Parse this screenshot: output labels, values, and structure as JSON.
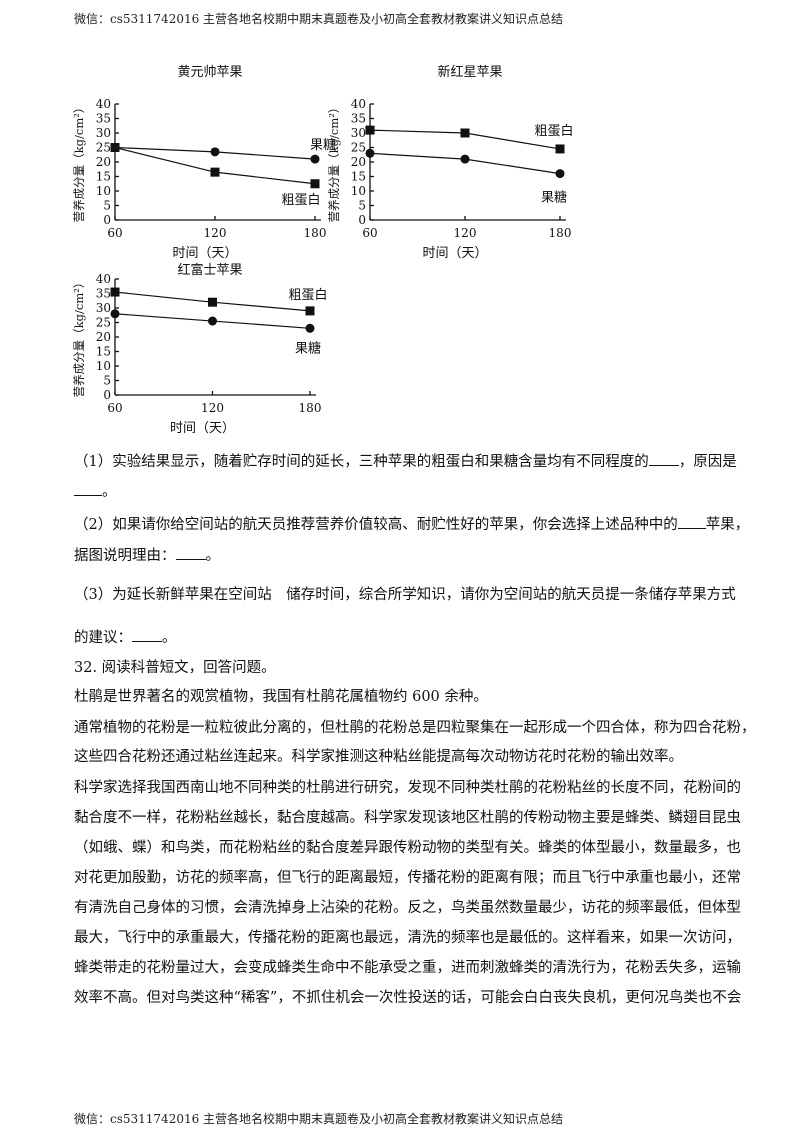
{
  "header": "微信：cs5311742016  主营各地名校期中期末真题卷及小初高全套教材教案讲义知识点总结",
  "footer": "微信：cs5311742016  主营各地名校期中期末真题卷及小初高全套教材教案讲义知识点总结",
  "chart_data": [
    {
      "type": "line",
      "title": "黄元帅苹果",
      "xlabel": "时间（天）",
      "ylabel": "营养成分量（kg/cm²）",
      "x": [
        60,
        120,
        180
      ],
      "xlim": [
        60,
        180
      ],
      "ylim": [
        0,
        40
      ],
      "yticks": [
        0,
        5,
        10,
        15,
        20,
        25,
        30,
        35,
        40
      ],
      "series": [
        {
          "name": "果糖",
          "marker": "circle",
          "values": [
            25,
            23.5,
            21
          ]
        },
        {
          "name": "粗蛋白",
          "marker": "square",
          "values": [
            25,
            16.5,
            12.5
          ]
        }
      ],
      "grid": false
    },
    {
      "type": "line",
      "title": "新红星苹果",
      "xlabel": "时间（天）",
      "ylabel": "营养成分量（kg/cm²）",
      "x": [
        60,
        120,
        180
      ],
      "xlim": [
        60,
        180
      ],
      "ylim": [
        0,
        40
      ],
      "yticks": [
        0,
        5,
        10,
        15,
        20,
        25,
        30,
        35,
        40
      ],
      "series": [
        {
          "name": "粗蛋白",
          "marker": "square",
          "values": [
            31,
            30,
            24.5
          ]
        },
        {
          "name": "果糖",
          "marker": "circle",
          "values": [
            23,
            21,
            16
          ]
        }
      ],
      "grid": false
    },
    {
      "type": "line",
      "title": "红富士苹果",
      "xlabel": "时间（天）",
      "ylabel": "营养成分量（kg/cm²）",
      "x": [
        60,
        120,
        180
      ],
      "xlim": [
        60,
        180
      ],
      "ylim": [
        0,
        40
      ],
      "yticks": [
        0,
        5,
        10,
        15,
        20,
        25,
        30,
        35,
        40
      ],
      "series": [
        {
          "name": "粗蛋白",
          "marker": "square",
          "values": [
            35.5,
            32,
            29
          ]
        },
        {
          "name": "果糖",
          "marker": "circle",
          "values": [
            28,
            25.5,
            23
          ]
        }
      ],
      "grid": false
    }
  ],
  "questions": {
    "q1a": "（1）实验结果显示，随着贮存时间的延长，三种苹果的粗蛋白和果糖含量均有不同程度的",
    "q1b": "，原因是",
    "q1c": "。",
    "q2a": "（2）如果请你给空间站的航天员推荐营养价值较高、耐贮性好的苹果，你会选择上述品种中的",
    "q2b": "苹果，",
    "q2c": "据图说明理由：",
    "q2d": "。",
    "q3a": "（3）为延长新鲜苹果在空间站　储存时间，综合所学知识，请你为空间站的航天员提一条储存苹果方式",
    "q3b": "的建议：",
    "q3c": "。"
  },
  "passage": {
    "heading": "32. 阅读科普短文，回答问题。",
    "lines": [
      "杜鹃是世界著名的观赏植物，我国有杜鹃花属植物约 600 余种。",
      "通常植物的花粉是一粒粒彼此分离的，但杜鹃的花粉总是四粒聚集在一起形成一个四合体，称为四合花粉，",
      "这些四合花粉还通过粘丝连起来。科学家推测这种粘丝能提高每次动物访花时花粉的输出效率。",
      "科学家选择我国西南山地不同种类的杜鹃进行研究，发现不同种类杜鹃的花粉粘丝的长度不同，花粉间的",
      "黏合度不一样，花粉粘丝越长，黏合度越高。科学家发现该地区杜鹃的传粉动物主要是蜂类、鳞翅目昆虫",
      "（如蛾、蝶）和鸟类，而花粉粘丝的黏合度差异跟传粉动物的类型有关。蜂类的体型最小，数量最多，也",
      "对花更加殷勤，访花的频率高，但飞行的距离最短，传播花粉的距离有限；而且飞行中承重也最小，还常",
      "有清洗自己身体的习惯，会清洗掉身上沾染的花粉。反之，鸟类虽然数量最少，访花的频率最低，但体型",
      "最大，飞行中的承重最大，传播花粉的距离也最远，清洗的频率也是最低的。这样看来，如果一次访问，",
      "蜂类带走的花粉量过大，会变成蜂类生命中不能承受之重，进而刺激蜂类的清洗行为，花粉丢失多，运输",
      "效率不高。但对鸟类这种“稀客”，不抓住机会一次性投送的话，可能会白白丧失良机，更何况鸟类也不会"
    ]
  }
}
